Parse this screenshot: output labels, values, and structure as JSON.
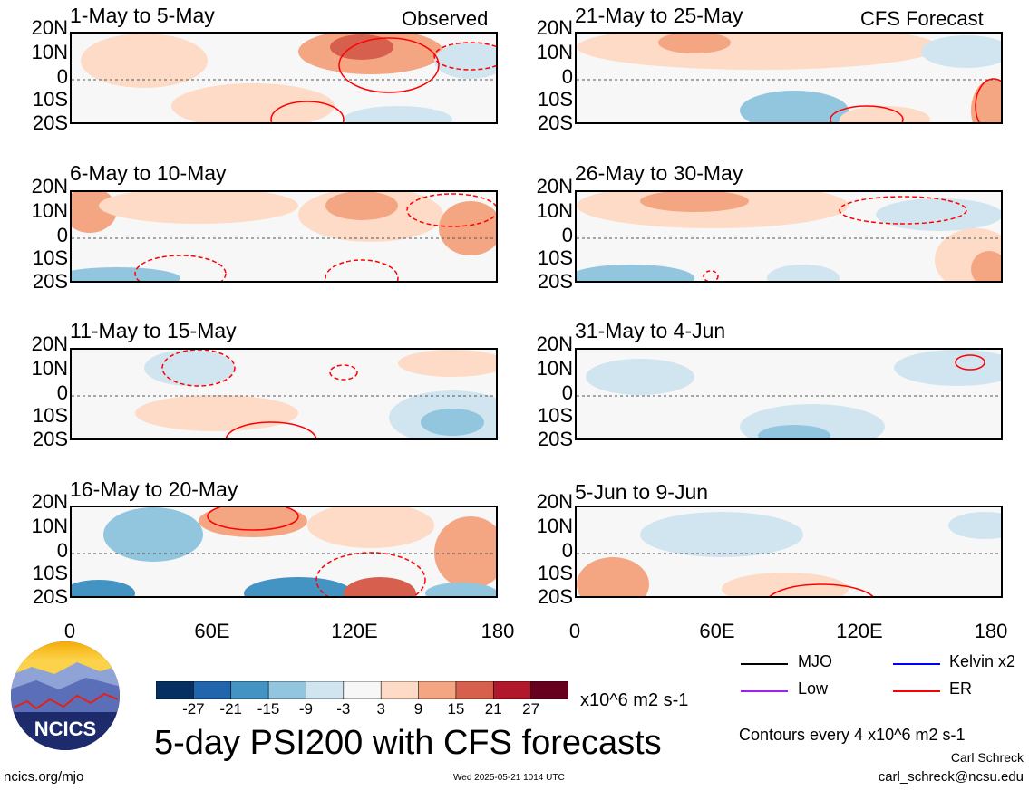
{
  "panels": [
    {
      "title": "1-May to 5-May",
      "tag": "Observed"
    },
    {
      "title": "6-May to 10-May",
      "tag": ""
    },
    {
      "title": "11-May to 15-May",
      "tag": ""
    },
    {
      "title": "16-May to 20-May",
      "tag": ""
    },
    {
      "title": "21-May to 25-May",
      "tag": "CFS Forecast"
    },
    {
      "title": "26-May to 30-May",
      "tag": ""
    },
    {
      "title": "31-May to 4-Jun",
      "tag": ""
    },
    {
      "title": "5-Jun to 9-Jun",
      "tag": ""
    }
  ],
  "lat_labels": [
    "20N",
    "10N",
    "0",
    "10S",
    "20S"
  ],
  "lon_labels": [
    "0",
    "60E",
    "120E",
    "180"
  ],
  "colorbar": {
    "labels": [
      "-27",
      "-21",
      "-15",
      "-9",
      "-3",
      "3",
      "9",
      "15",
      "21",
      "27"
    ],
    "colors": [
      "#053061",
      "#2166ac",
      "#4393c3",
      "#92c5de",
      "#d1e5f0",
      "#f7f7f7",
      "#fddbc7",
      "#f4a582",
      "#d6604d",
      "#b2182b",
      "#67001f"
    ],
    "units": "x10^6 m2 s-1"
  },
  "legend": {
    "items": [
      {
        "label": "MJO",
        "color": "#000000"
      },
      {
        "label": "Kelvin x2",
        "color": "#0000ff"
      },
      {
        "label": "Low",
        "color": "#a020f0"
      },
      {
        "label": "ER",
        "color": "#ff0000"
      }
    ],
    "contour_note": "Contours every 4 x10^6 m2 s-1"
  },
  "title": "5-day PSI200 with CFS forecasts",
  "logo_text": "NCICS",
  "footer": {
    "left": "ncics.org/mjo",
    "center": "Wed 2025-05-21 1014 UTC",
    "author": "Carl Schreck",
    "email": "carl_schreck@ncsu.edu"
  }
}
